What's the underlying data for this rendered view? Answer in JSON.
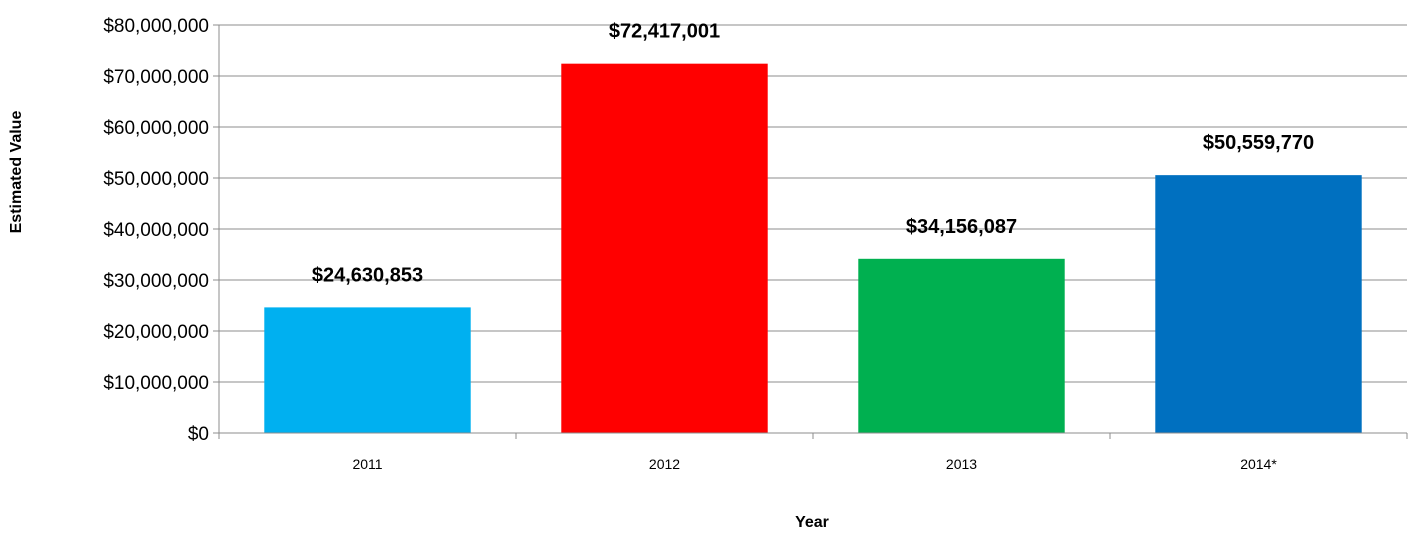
{
  "chart_data": {
    "type": "bar",
    "title": "",
    "xlabel": "Year",
    "ylabel": "Estimated Value",
    "categories": [
      "2011",
      "2012",
      "2013",
      "2014*"
    ],
    "values": [
      24630853,
      72417001,
      34156087,
      50559770
    ],
    "data_labels": [
      "$24,630,853",
      "$72,417,001",
      "$34,156,087",
      "$50,559,770"
    ],
    "bar_colors": [
      "#00b0f0",
      "#ff0000",
      "#00b050",
      "#0070c0"
    ],
    "ylim": [
      0,
      80000000
    ],
    "y_ticks": [
      0,
      10000000,
      20000000,
      30000000,
      40000000,
      50000000,
      60000000,
      70000000,
      80000000
    ],
    "y_tick_labels": [
      "$0",
      "$10,000,000",
      "$20,000,000",
      "$30,000,000",
      "$40,000,000",
      "$50,000,000",
      "$60,000,000",
      "$70,000,000",
      "$80,000,000"
    ],
    "grid": true,
    "legend": "none"
  }
}
